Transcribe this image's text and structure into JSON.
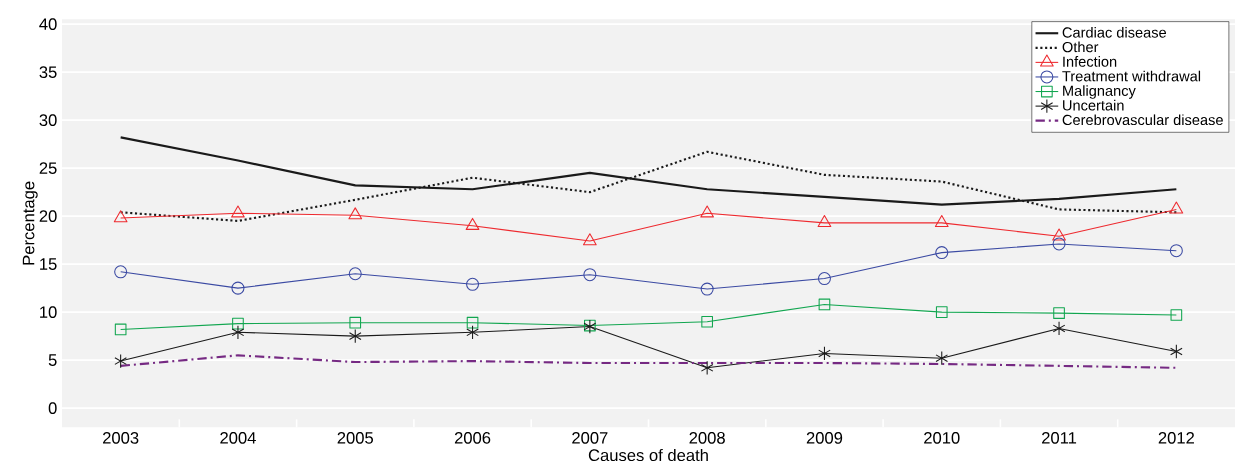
{
  "chart_data": {
    "type": "line",
    "xlabel": "Causes of death",
    "ylabel": "Percentage",
    "categories": [
      "2003",
      "2004",
      "2005",
      "2006",
      "2007",
      "2008",
      "2009",
      "2010",
      "2011",
      "2012"
    ],
    "series": [
      {
        "name": "Cardiac disease",
        "color": "#1a1a1a",
        "marker": "none",
        "line_style": "solid",
        "values": [
          28.2,
          25.8,
          23.2,
          22.8,
          24.5,
          22.8,
          22.0,
          21.2,
          21.8,
          22.8
        ]
      },
      {
        "name": "Other",
        "color": "#1a1a1a",
        "marker": "none",
        "line_style": "dotted",
        "values": [
          20.4,
          19.5,
          21.7,
          24.0,
          22.5,
          26.7,
          24.3,
          23.6,
          20.7,
          20.4
        ]
      },
      {
        "name": "Infection",
        "color": "#ee2a2f",
        "marker": "triangle",
        "line_style": "solid",
        "values": [
          19.8,
          20.3,
          20.1,
          19.0,
          17.4,
          20.3,
          19.3,
          19.3,
          17.9,
          20.7
        ]
      },
      {
        "name": "Treatment withdrawal",
        "color": "#3b4aa3",
        "marker": "circle",
        "line_style": "solid",
        "values": [
          14.2,
          12.5,
          14.0,
          12.9,
          13.9,
          12.4,
          13.5,
          16.2,
          17.1,
          16.4
        ]
      },
      {
        "name": "Malignancy",
        "color": "#12a650",
        "marker": "square",
        "line_style": "solid",
        "values": [
          8.2,
          8.8,
          8.9,
          8.9,
          8.6,
          9.0,
          10.8,
          10.0,
          9.9,
          9.7
        ]
      },
      {
        "name": "Uncertain",
        "color": "#1a1a1a",
        "marker": "cross",
        "line_style": "solid",
        "values": [
          4.9,
          7.9,
          7.5,
          7.9,
          8.5,
          4.2,
          5.7,
          5.2,
          8.3,
          5.9
        ]
      },
      {
        "name": "Cerebrovascular disease",
        "color": "#762a83",
        "marker": "none",
        "line_style": "dashdot",
        "values": [
          4.4,
          5.5,
          4.8,
          4.9,
          4.7,
          4.7,
          4.7,
          4.6,
          4.4,
          4.2
        ]
      }
    ],
    "ylim": [
      -2,
      40.5
    ],
    "yticks": [
      0,
      5,
      10,
      15,
      20,
      25,
      30,
      35,
      40
    ],
    "grid": "y",
    "legend": "top right"
  }
}
